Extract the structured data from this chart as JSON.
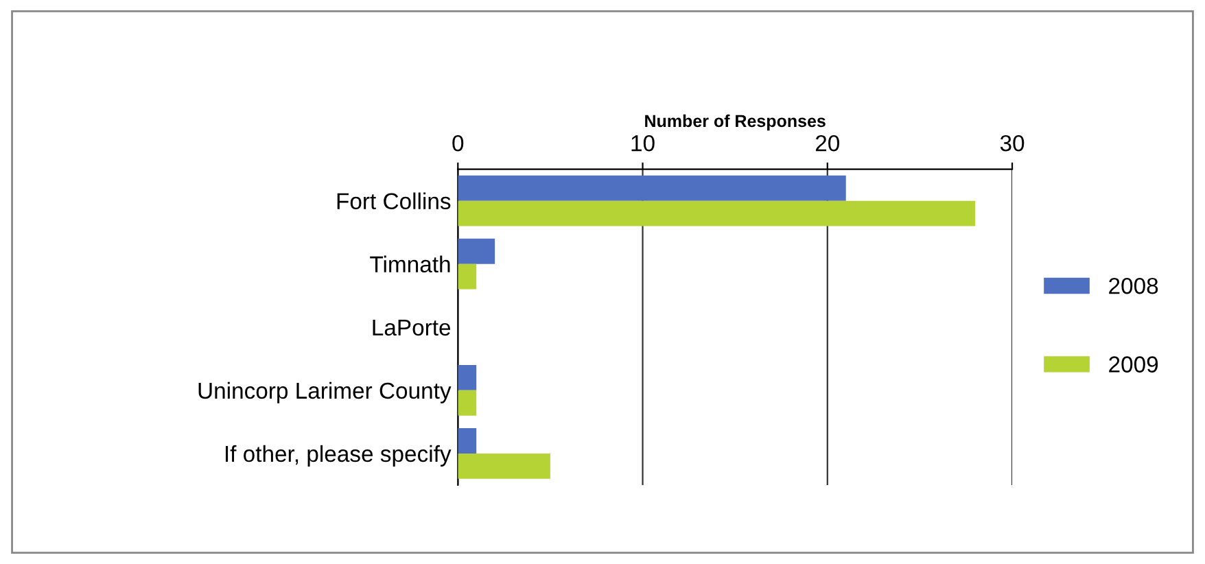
{
  "chart_data": {
    "type": "bar",
    "orientation": "horizontal",
    "xlabel": "Number of Responses",
    "categories": [
      "Fort Collins",
      "Timnath",
      "LaPorte",
      "Unincorp Larimer County",
      "If other, please specify"
    ],
    "series": [
      {
        "name": "2008",
        "color": "#4f6fc0",
        "values": [
          21,
          2,
          0,
          1,
          1
        ]
      },
      {
        "name": "2009",
        "color": "#b5d335",
        "values": [
          28,
          1,
          0,
          1,
          5
        ]
      }
    ],
    "xlim": [
      0,
      30
    ],
    "xticks": [
      0,
      10,
      20,
      30
    ],
    "grid": "x",
    "legend": "right"
  }
}
